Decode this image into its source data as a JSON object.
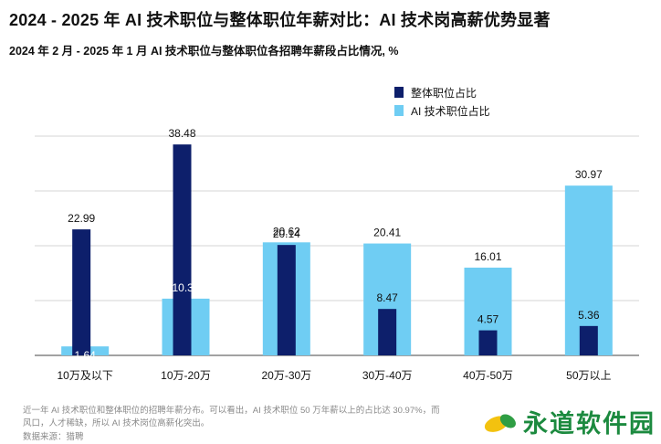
{
  "chart_data": {
    "type": "bar",
    "title": "2024 - 2025 年 AI 技术职位与整体职位年薪对比：AI 技术岗高薪优势显著",
    "subtitle": "2024 年 2 月 - 2025 年 1 月 AI 技术职位与整体职位各招聘年薪段占比情况, %",
    "categories": [
      "10万及以下",
      "10万-20万",
      "20万-30万",
      "30万-40万",
      "40万-50万",
      "50万以上"
    ],
    "series": [
      {
        "name": "整体职位占比",
        "color": "#0d1f6b",
        "values": [
          22.99,
          38.48,
          20.14,
          8.47,
          4.57,
          5.36
        ]
      },
      {
        "name": "AI 技术职位占比",
        "color": "#6fcdf3",
        "values": [
          1.64,
          10.35,
          20.62,
          20.41,
          16.01,
          30.97
        ]
      }
    ],
    "ylim": [
      0,
      40
    ],
    "grid": true,
    "legend": "top-center"
  },
  "footnote": {
    "line1": "近一年 AI 技术职位和整体职位的招聘年薪分布。可以看出，AI 技术职位 50 万年薪以上的占比达 30.97%，而",
    "line2": "风口，人才稀缺，所以 AI 技术岗位高薪化突出。",
    "source": "数据来源：猎聘"
  },
  "watermark": {
    "text": "永道软件园"
  }
}
